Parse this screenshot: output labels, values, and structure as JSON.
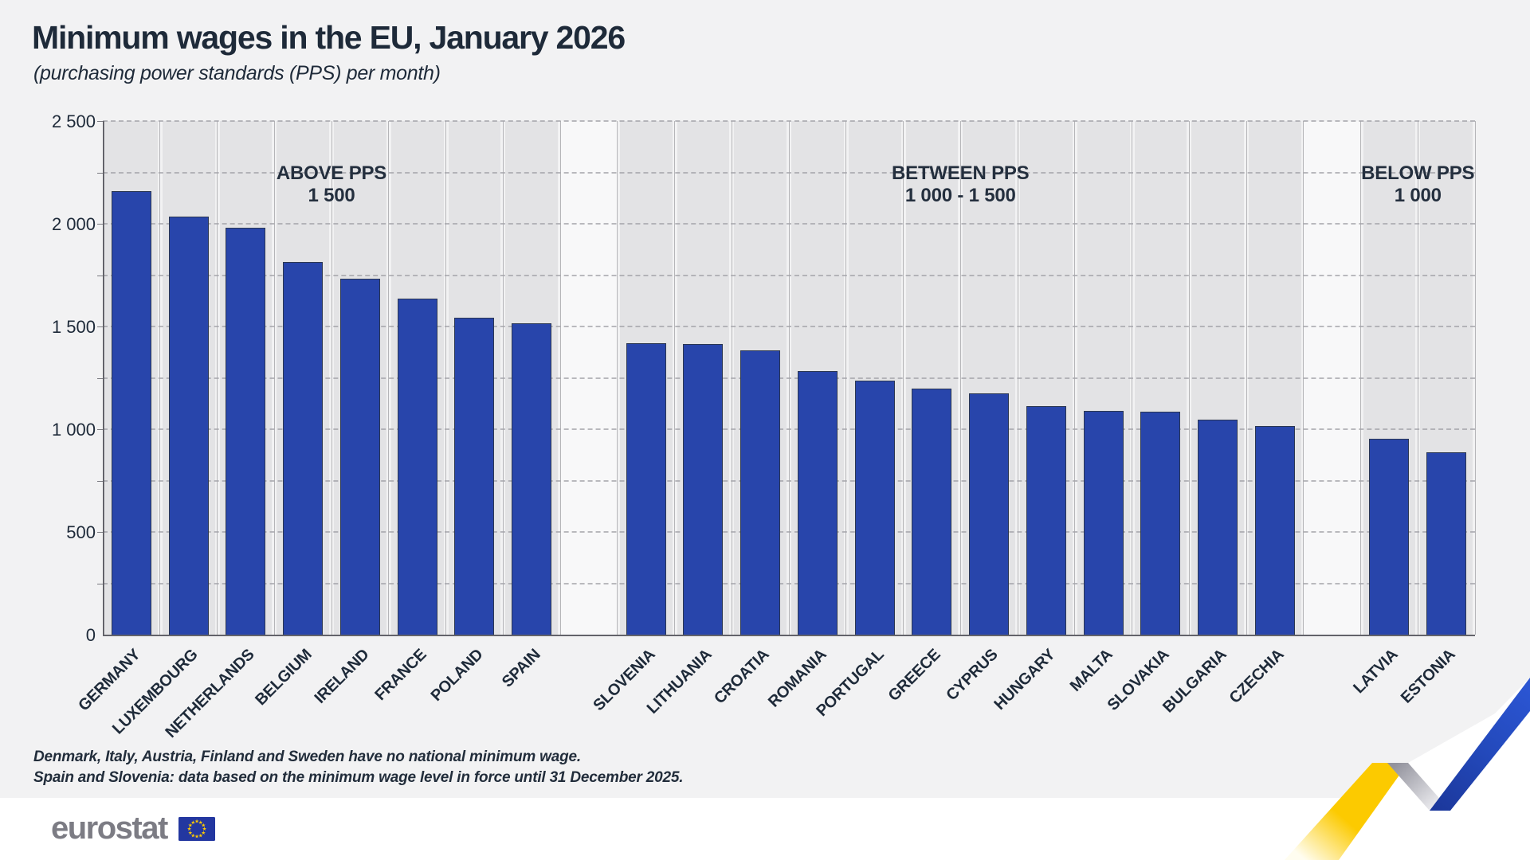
{
  "header": {
    "title": "Minimum wages in the EU, January 2026",
    "subtitle": "(purchasing power standards (PPS) per month)"
  },
  "y_axis": {
    "tick_labels": [
      "0",
      "500",
      "1 000",
      "1 500",
      "2 000",
      "2 500"
    ],
    "max": 2500,
    "major_step": 500,
    "minor_step": 250
  },
  "chart_data": {
    "type": "bar",
    "title": "Minimum wages in the EU, January 2026",
    "subtitle": "(purchasing power standards (PPS) per month)",
    "ylabel": "PPS per month",
    "ylim": [
      0,
      2500
    ],
    "grid": "horizontal dashed every 250",
    "legend_position": "none",
    "groups": [
      {
        "label": [
          "ABOVE PPS",
          "1 500"
        ],
        "bars": [
          {
            "country": "GERMANY",
            "value": 2160
          },
          {
            "country": "LUXEMBOURG",
            "value": 2036
          },
          {
            "country": "NETHERLANDS",
            "value": 1980
          },
          {
            "country": "BELGIUM",
            "value": 1813
          },
          {
            "country": "IRELAND",
            "value": 1732
          },
          {
            "country": "FRANCE",
            "value": 1637
          },
          {
            "country": "POLAND",
            "value": 1543
          },
          {
            "country": "SPAIN",
            "value": 1515
          }
        ]
      },
      {
        "label": [
          "BETWEEN PPS",
          "1 000 - 1 500"
        ],
        "bars": [
          {
            "country": "SLOVENIA",
            "value": 1420
          },
          {
            "country": "LITHUANIA",
            "value": 1414
          },
          {
            "country": "CROATIA",
            "value": 1382
          },
          {
            "country": "ROMANIA",
            "value": 1283
          },
          {
            "country": "PORTUGAL",
            "value": 1237
          },
          {
            "country": "GREECE",
            "value": 1199
          },
          {
            "country": "CYPRUS",
            "value": 1176
          },
          {
            "country": "HUNGARY",
            "value": 1113
          },
          {
            "country": "MALTA",
            "value": 1090
          },
          {
            "country": "SLOVAKIA",
            "value": 1086
          },
          {
            "country": "BULGARIA",
            "value": 1045
          },
          {
            "country": "CZECHIA",
            "value": 1017
          }
        ]
      },
      {
        "label": [
          "BELOW PPS",
          "1 000"
        ],
        "bars": [
          {
            "country": "LATVIA",
            "value": 955
          },
          {
            "country": "ESTONIA",
            "value": 886
          }
        ]
      }
    ]
  },
  "footnotes": [
    "Denmark, Italy, Austria, Finland and Sweden have no national minimum wage.",
    "Spain and Slovenia: data based on the minimum wage level in force until 31 December 2025."
  ],
  "branding": {
    "logo_text": "eurostat"
  },
  "colors": {
    "canvas": "#f2f2f3",
    "band": "#e3e3e5",
    "spacer": "#f8f8f9",
    "bar": "#2845ab",
    "bar_border": "#2b3752",
    "gridline": "#a4a4aa",
    "axis": "#63636a",
    "text": "#1e2a39",
    "logo_gray": "#7c7c84",
    "flag_blue": "#2337a0",
    "star_yellow": "#ffcc00",
    "ribbon_yellow": "#fcca00",
    "ribbon_blue": "#2148bc",
    "ribbon_gray": "#93939d"
  }
}
